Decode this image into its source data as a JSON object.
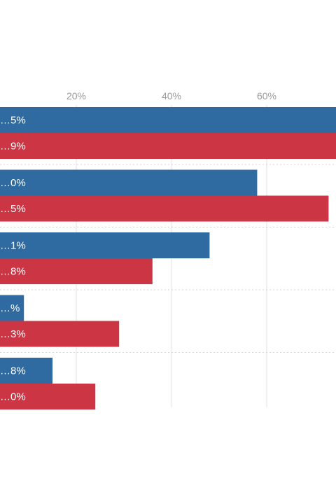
{
  "chart_data": {
    "type": "bar",
    "orientation": "horizontal",
    "title": "",
    "xlabel": "",
    "ylabel": "",
    "x_ticks": [
      "20%",
      "40%",
      "60%"
    ],
    "xlim_percent": [
      0,
      70
    ],
    "grid": true,
    "legend": "none",
    "series": [
      {
        "color": "#2f6aa0",
        "values": [
          82,
          58,
          48,
          9,
          15
        ],
        "labels": [
          "…5%",
          "…0%",
          "…1%",
          "…%",
          "…8%"
        ]
      },
      {
        "color": "#cc3644",
        "values": [
          79,
          73,
          36,
          29,
          24
        ],
        "labels": [
          "…9%",
          "…5%",
          "…8%",
          "…3%",
          "…0%"
        ]
      }
    ]
  }
}
